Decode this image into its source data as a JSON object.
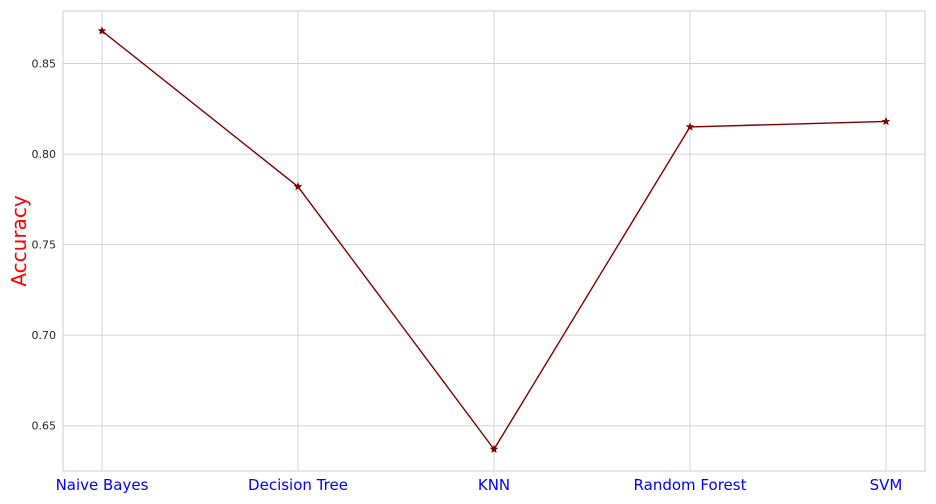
{
  "colors": {
    "line": "#800000",
    "marker": "#800000",
    "grid": "#d3d3d3",
    "frame": "#cccccc",
    "xtick_text": "#0000ff",
    "ylabel_text": "#ff0000"
  },
  "chart_data": {
    "type": "line",
    "categories": [
      "Naive Bayes",
      "Decision Tree",
      "KNN",
      "Random Forest",
      "SVM"
    ],
    "series": [
      {
        "values": [
          0.868,
          0.782,
          0.637,
          0.815,
          0.818
        ],
        "marker": "star"
      }
    ],
    "ylabel": "Accuracy",
    "xlabel": "",
    "yticks": [
      0.65,
      0.7,
      0.75,
      0.8,
      0.85
    ],
    "ytick_labels": [
      "0.65",
      "0.70",
      "0.75",
      "0.80",
      "0.85"
    ],
    "ylim": [
      0.625,
      0.879
    ],
    "grid": true,
    "legend": false
  }
}
